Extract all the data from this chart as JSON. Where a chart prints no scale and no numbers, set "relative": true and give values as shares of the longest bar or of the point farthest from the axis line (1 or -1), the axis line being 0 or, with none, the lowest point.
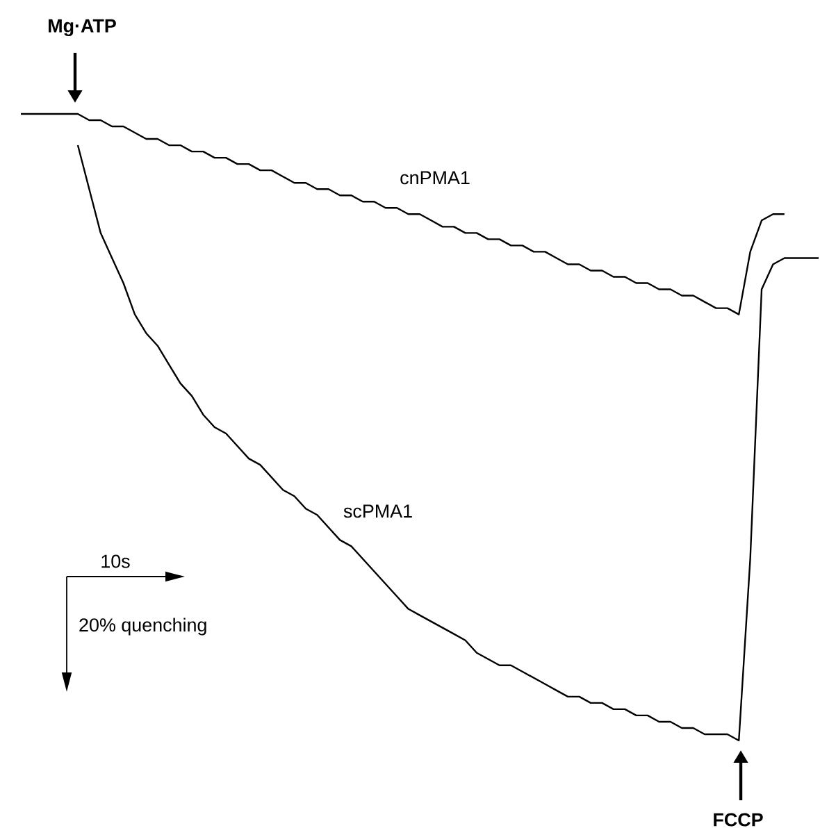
{
  "chart_data": {
    "type": "line",
    "relative": true,
    "marker": "none",
    "line_style": "solid",
    "categories": [
      null,
      null,
      null,
      null,
      null,
      null,
      null,
      null,
      null,
      null,
      null,
      null,
      null,
      null,
      null,
      null,
      null,
      null,
      null,
      null,
      null,
      null,
      null,
      null,
      null,
      null,
      null,
      null,
      null,
      null,
      null,
      null,
      null,
      null,
      null,
      null,
      null,
      null,
      null,
      null,
      null,
      null,
      null,
      null,
      null,
      null,
      null,
      null,
      null,
      null,
      null,
      null,
      null,
      null,
      null,
      null,
      null,
      null,
      null,
      null,
      null,
      null,
      null,
      null,
      null,
      null,
      null,
      null,
      null,
      null,
      null
    ],
    "series": [
      {
        "name": "cnPMA1",
        "color": "#000000",
        "values": [
          1.0,
          1.0,
          1.0,
          1.0,
          1.0,
          1.0,
          0.99,
          0.99,
          0.98,
          0.98,
          0.97,
          0.96,
          0.96,
          0.95,
          0.95,
          0.94,
          0.94,
          0.93,
          0.93,
          0.92,
          0.92,
          0.91,
          0.91,
          0.9,
          0.89,
          0.89,
          0.88,
          0.88,
          0.87,
          0.87,
          0.86,
          0.86,
          0.85,
          0.85,
          0.84,
          0.84,
          0.83,
          0.82,
          0.82,
          0.81,
          0.81,
          0.8,
          0.8,
          0.79,
          0.79,
          0.78,
          0.78,
          0.77,
          0.76,
          0.76,
          0.75,
          0.75,
          0.74,
          0.74,
          0.73,
          0.73,
          0.72,
          0.72,
          0.71,
          0.71,
          0.7,
          0.69,
          0.69,
          0.68,
          0.78,
          0.83,
          0.84,
          0.84,
          null,
          null,
          null
        ]
      },
      {
        "name": "scPMA1",
        "color": "#000000",
        "values": [
          null,
          null,
          null,
          null,
          null,
          0.95,
          0.88,
          0.81,
          0.77,
          0.73,
          0.68,
          0.65,
          0.63,
          0.6,
          0.57,
          0.55,
          0.52,
          0.5,
          0.49,
          0.47,
          0.45,
          0.44,
          0.42,
          0.4,
          0.39,
          0.37,
          0.36,
          0.34,
          0.32,
          0.31,
          0.29,
          0.27,
          0.25,
          0.23,
          0.21,
          0.2,
          0.19,
          0.18,
          0.17,
          0.16,
          0.14,
          0.13,
          0.12,
          0.12,
          0.11,
          0.1,
          0.09,
          0.08,
          0.07,
          0.07,
          0.06,
          0.06,
          0.05,
          0.05,
          0.04,
          0.04,
          0.03,
          0.03,
          0.02,
          0.02,
          0.01,
          0.01,
          0.01,
          0.0,
          0.29,
          0.72,
          0.76,
          0.77,
          0.77,
          0.77,
          0.77
        ]
      }
    ],
    "annotations": [
      "Mg·ATP",
      "FCCP",
      "10s",
      "20% quenching"
    ]
  }
}
